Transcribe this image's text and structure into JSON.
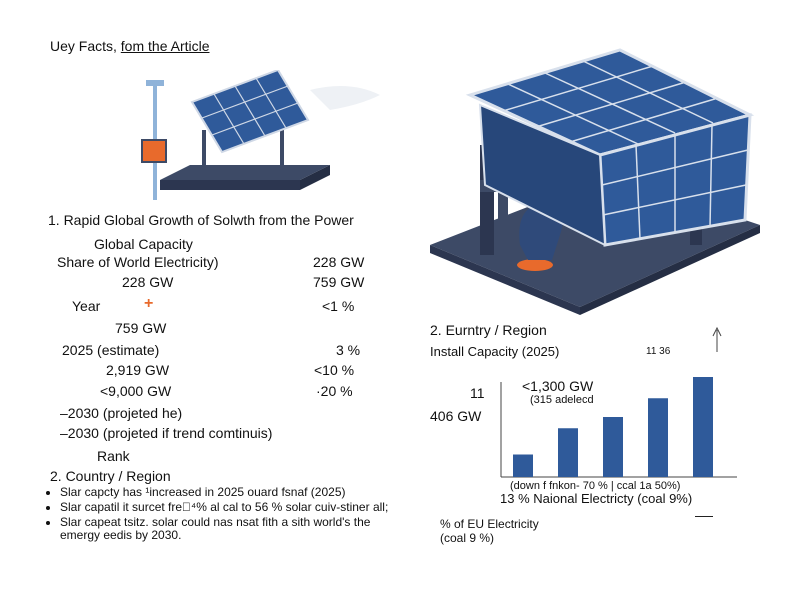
{
  "page": {
    "title_a": "Uey Facts, ",
    "title_b": "fom the Article"
  },
  "section1": {
    "heading": "1. Rapid Global Growth of Solwth from the Power",
    "global_capacity": "Global Capacity",
    "share_label": "Share of World Electricity)",
    "share_value": "228 GW",
    "row1_left": "228 GW",
    "row1_right": "759 GW",
    "year_label": "Year",
    "year_right": "<1 %",
    "row3_left": "759 GW",
    "row4_left": "2025 (estimate)",
    "row4_right": "3 %",
    "row5_left": "2,919 GW",
    "row5_right": "<10 %",
    "row6_left": "<9,000 GW",
    "row6_right": "·20 %",
    "proj1": "–2030 (projeted he)",
    "proj2": "–2030 (projeted if trend comtinuis)",
    "rank": "Rank"
  },
  "section2_left": {
    "heading": "2. Country / Region",
    "bullets": [
      "Slar capcty has ¹increased in 2025 ouard fsnaf (2025)",
      "Slar capatil it surcet fre⃥⁴% al cal to 56 % solar cuiv-stiner all;",
      "Slar capeat tsitz. solar could nas nsat fith a sith world's the emergy eedis by 2030."
    ]
  },
  "section2_right": {
    "heading": "2. Eurntry / Region",
    "install_label": "Install Capacity (2025)",
    "label_11": "11",
    "label_406": "406 GW",
    "label_1300": "<1,300 GW",
    "label_315": "(315 adelecd",
    "label_1136": "11 36",
    "axis_note": "(down f fnkon- 70 % | ccal 1a 50%)",
    "national": "13 % Naional Electricty (coal 9%)",
    "eu_label": "% of EU Electricity",
    "coal_label": "(coal 9 %)"
  },
  "chart_data": {
    "type": "bar",
    "categories": [
      "",
      "",
      "",
      "",
      ""
    ],
    "values": [
      1.8,
      3.9,
      4.8,
      6.3,
      8.0
    ],
    "ylim": [
      0,
      10
    ],
    "color": "#2f5a9a"
  },
  "colors": {
    "accent": "#e86a2c",
    "panel": "#2f5a9a",
    "base": "#3d4a66"
  }
}
